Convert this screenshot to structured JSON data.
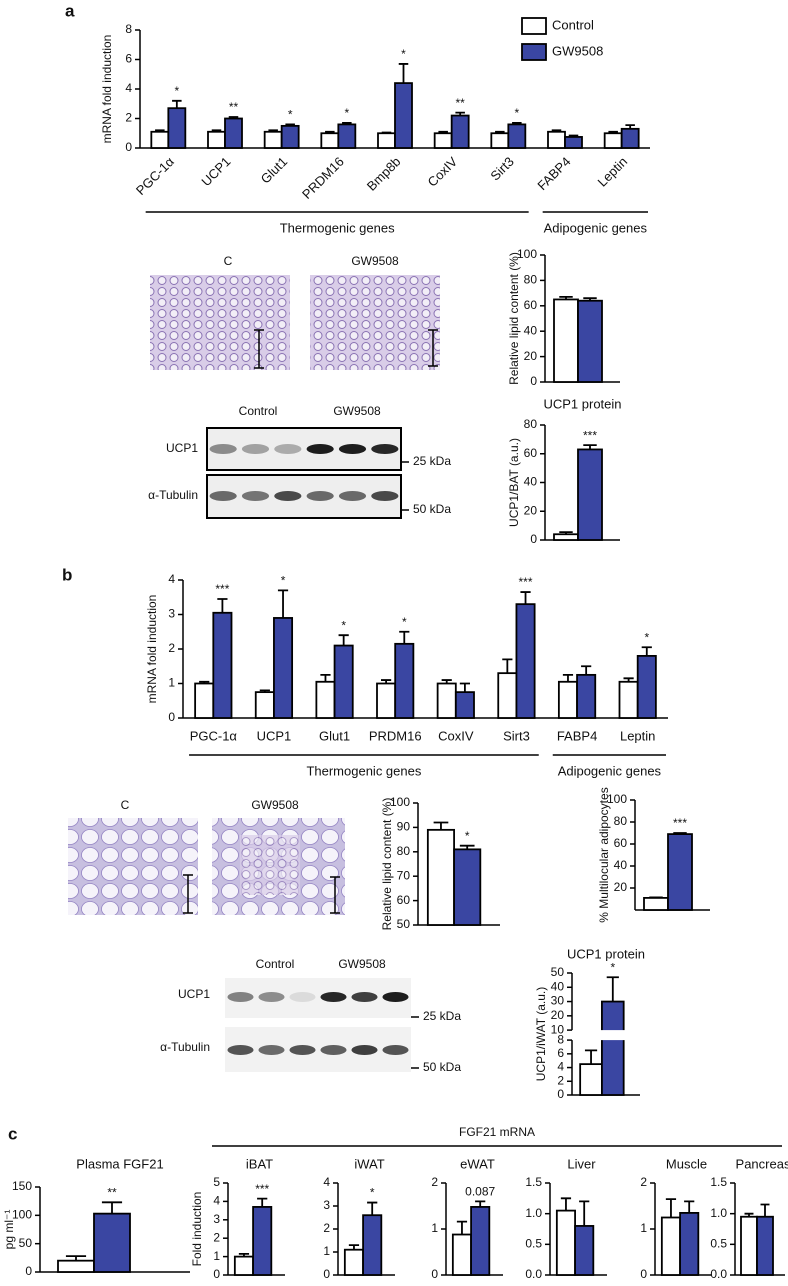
{
  "labels": {
    "panel_a": "a",
    "panel_b": "b",
    "panel_c": "c",
    "a_histology": [
      "C",
      "GW9508"
    ],
    "a_blot": {
      "groups": [
        "Control",
        "GW9508"
      ],
      "rows": [
        "UCP1",
        "α-Tubulin"
      ],
      "markers": [
        "25 kDa",
        "50 kDa"
      ]
    },
    "b_histology": [
      "C",
      "GW9508"
    ],
    "b_blot": {
      "groups": [
        "Control",
        "GW9508"
      ],
      "rows": [
        "UCP1",
        "α-Tubulin"
      ],
      "markers": [
        "25 kDa",
        "50 kDa"
      ]
    },
    "c_header": "FGF21 mRNA"
  },
  "chart_data": [
    {
      "type": "bar",
      "ylabel": "mRNA fold induction",
      "legend": "top-right",
      "categories": [
        "PGC-1α",
        "UCP1",
        "Glut1",
        "PRDM16",
        "Bmp8b",
        "CoxIV",
        "Sirt3",
        "FABP4",
        "Leptin"
      ],
      "group_labels": [
        "Thermogenic genes",
        "Adipogenic genes"
      ],
      "ylim": [
        0,
        8
      ],
      "yticks": [
        0,
        2,
        4,
        6,
        8
      ],
      "series": [
        {
          "name": "Control",
          "color": "#ffffff",
          "values": [
            1.1,
            1.1,
            1.1,
            1.0,
            1.0,
            1.0,
            1.0,
            1.1,
            1.0
          ],
          "errors": [
            0.1,
            0.1,
            0.1,
            0.1,
            0.05,
            0.1,
            0.1,
            0.1,
            0.1
          ]
        },
        {
          "name": "GW9508",
          "color": "#3a46a2",
          "values": [
            2.7,
            2.0,
            1.5,
            1.6,
            4.4,
            2.2,
            1.6,
            0.75,
            1.3
          ],
          "errors": [
            0.5,
            0.1,
            0.1,
            0.1,
            1.3,
            0.2,
            0.1,
            0.1,
            0.25
          ],
          "annotations": [
            "*",
            "**",
            "*",
            "*",
            "*",
            "**",
            "*",
            null,
            null
          ]
        }
      ]
    },
    {
      "type": "bar",
      "ylabel": "Relative lipid content (%)",
      "ylim": [
        0,
        100
      ],
      "yticks": [
        0,
        20,
        40,
        60,
        80,
        100
      ],
      "series": [
        {
          "color": "#ffffff",
          "values": [
            65
          ],
          "errors": [
            2
          ]
        },
        {
          "color": "#3a46a2",
          "values": [
            64
          ],
          "errors": [
            2
          ]
        }
      ]
    },
    {
      "type": "bar",
      "title": "UCP1 protein",
      "ylabel": "UCP1/BAT (a.u.)",
      "ylim": [
        0,
        80
      ],
      "yticks": [
        0,
        20,
        40,
        60,
        80
      ],
      "series": [
        {
          "color": "#ffffff",
          "values": [
            4
          ],
          "errors": [
            1.5
          ]
        },
        {
          "color": "#3a46a2",
          "values": [
            63
          ],
          "errors": [
            3
          ],
          "annotations": [
            "***"
          ]
        }
      ]
    },
    {
      "type": "bar",
      "ylabel": "mRNA fold induction",
      "categories": [
        "PGC-1α",
        "UCP1",
        "Glut1",
        "PRDM16",
        "CoxIV",
        "Sirt3",
        "FABP4",
        "Leptin"
      ],
      "group_labels": [
        "Thermogenic genes",
        "Adipogenic genes"
      ],
      "ylim": [
        0,
        4
      ],
      "yticks": [
        0,
        1,
        2,
        3,
        4
      ],
      "series": [
        {
          "color": "#ffffff",
          "values": [
            1.0,
            0.75,
            1.05,
            1.0,
            1.0,
            1.3,
            1.05,
            1.05
          ],
          "errors": [
            0.05,
            0.05,
            0.2,
            0.1,
            0.1,
            0.4,
            0.2,
            0.1
          ]
        },
        {
          "color": "#3a46a2",
          "values": [
            3.05,
            2.9,
            2.1,
            2.15,
            0.75,
            3.3,
            1.25,
            1.8
          ],
          "errors": [
            0.4,
            0.8,
            0.3,
            0.35,
            0.25,
            0.35,
            0.25,
            0.25
          ],
          "annotations": [
            "***",
            "*",
            "*",
            "*",
            null,
            "***",
            null,
            "*"
          ]
        }
      ]
    },
    {
      "type": "bar",
      "ylabel": "Relative lipid content (%)",
      "ylim": [
        50,
        100
      ],
      "yticks": [
        50,
        60,
        70,
        80,
        90,
        100
      ],
      "series": [
        {
          "color": "#ffffff",
          "values": [
            89
          ],
          "errors": [
            3
          ]
        },
        {
          "color": "#3a46a2",
          "values": [
            81
          ],
          "errors": [
            1.5
          ],
          "annotations": [
            "*"
          ]
        }
      ]
    },
    {
      "type": "bar",
      "ylabel": "% Multilocular adipocytes",
      "ylim": [
        0,
        100
      ],
      "yticks": [
        20,
        40,
        60,
        80,
        100
      ],
      "series": [
        {
          "color": "#ffffff",
          "values": [
            11
          ],
          "errors": [
            0.5
          ]
        },
        {
          "color": "#3a46a2",
          "values": [
            69
          ],
          "errors": [
            1
          ],
          "annotations": [
            "***"
          ]
        }
      ]
    },
    {
      "type": "bar",
      "title": "UCP1 protein",
      "ylabel": "UCP1/iWAT (a.u.)",
      "ylim": [
        0,
        50
      ],
      "axis_break": [
        8,
        10
      ],
      "yticks": [
        0,
        2,
        4,
        6,
        8,
        10,
        20,
        30,
        40,
        50
      ],
      "series": [
        {
          "color": "#ffffff",
          "values": [
            4.5
          ],
          "errors": [
            2
          ]
        },
        {
          "color": "#3a46a2",
          "values": [
            30
          ],
          "errors": [
            17
          ],
          "annotations": [
            "*"
          ]
        }
      ]
    },
    {
      "type": "bar",
      "title": "Plasma FGF21",
      "ylabel": "pg ml⁻¹",
      "ylim": [
        0,
        150
      ],
      "yticks": [
        0,
        50,
        100,
        150
      ],
      "series": [
        {
          "color": "#ffffff",
          "values": [
            20
          ],
          "errors": [
            8
          ]
        },
        {
          "color": "#3a46a2",
          "values": [
            103
          ],
          "errors": [
            20
          ],
          "annotations": [
            "**"
          ]
        }
      ]
    },
    {
      "type": "bar",
      "title": "iBAT",
      "ylabel": "Fold induction",
      "ylim": [
        0,
        5
      ],
      "yticks": [
        0,
        1,
        2,
        3,
        4,
        5
      ],
      "series": [
        {
          "color": "#ffffff",
          "values": [
            1.0
          ],
          "errors": [
            0.15
          ]
        },
        {
          "color": "#3a46a2",
          "values": [
            3.7
          ],
          "errors": [
            0.45
          ],
          "annotations": [
            "***"
          ]
        }
      ]
    },
    {
      "type": "bar",
      "title": "iWAT",
      "ylim": [
        0,
        4
      ],
      "yticks": [
        0,
        1,
        2,
        3,
        4
      ],
      "series": [
        {
          "color": "#ffffff",
          "values": [
            1.1
          ],
          "errors": [
            0.2
          ]
        },
        {
          "color": "#3a46a2",
          "values": [
            2.6
          ],
          "errors": [
            0.55
          ],
          "annotations": [
            "*"
          ]
        }
      ]
    },
    {
      "type": "bar",
      "title": "eWAT",
      "ylim": [
        0,
        2
      ],
      "yticks": [
        0,
        1,
        2
      ],
      "series": [
        {
          "color": "#ffffff",
          "values": [
            0.88
          ],
          "errors": [
            0.28
          ]
        },
        {
          "color": "#3a46a2",
          "values": [
            1.48
          ],
          "errors": [
            0.12
          ],
          "annotations": [
            "0.087"
          ]
        }
      ]
    },
    {
      "type": "bar",
      "title": "Liver",
      "ylim": [
        0,
        1.5
      ],
      "yticks": [
        {
          "value": 0,
          "label": "0.0"
        },
        0.5,
        {
          "value": 1,
          "label": "1.0"
        },
        1.5
      ],
      "series": [
        {
          "color": "#ffffff",
          "values": [
            1.05
          ],
          "errors": [
            0.2
          ]
        },
        {
          "color": "#3a46a2",
          "values": [
            0.8
          ],
          "errors": [
            0.4
          ]
        }
      ]
    },
    {
      "type": "bar",
      "title": "Muscle",
      "ylim": [
        0,
        2
      ],
      "yticks": [
        0,
        1,
        2
      ],
      "series": [
        {
          "color": "#ffffff",
          "values": [
            1.25
          ],
          "errors": [
            0.4
          ]
        },
        {
          "color": "#3a46a2",
          "values": [
            1.35
          ],
          "errors": [
            0.25
          ]
        }
      ]
    },
    {
      "type": "bar",
      "title": "Pancreas",
      "ylim": [
        0,
        1.5
      ],
      "yticks": [
        {
          "value": 0,
          "label": "0.0"
        },
        0.5,
        {
          "value": 1,
          "label": "1.0"
        },
        1.5
      ],
      "series": [
        {
          "color": "#ffffff",
          "values": [
            0.95
          ],
          "errors": [
            0.05
          ]
        },
        {
          "color": "#3a46a2",
          "values": [
            0.95
          ],
          "errors": [
            0.2
          ]
        }
      ]
    }
  ]
}
